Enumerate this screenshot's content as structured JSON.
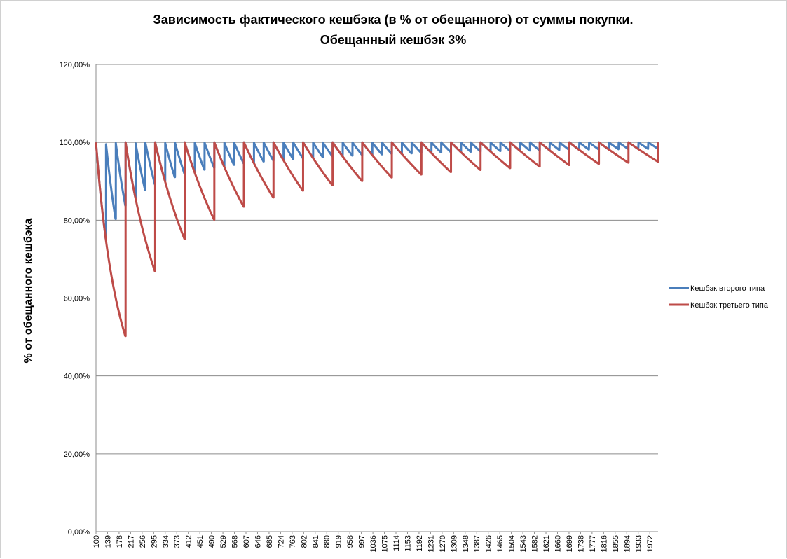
{
  "chart_data": {
    "type": "line",
    "title_line1": "Зависимость фактического кешбэка (в % от обещанного) от суммы покупки.",
    "title_line2": "Обещанный кешбэк 3%",
    "xlabel": "",
    "ylabel": "% от обещанного кешбэка",
    "ylim": [
      0,
      1.2
    ],
    "y_ticks": [
      "0,00%",
      "20,00%",
      "40,00%",
      "60,00%",
      "80,00%",
      "100,00%",
      "120,00%"
    ],
    "y_tick_values": [
      0,
      0.2,
      0.4,
      0.6,
      0.8,
      1.0,
      1.2
    ],
    "xlim": [
      100,
      2000
    ],
    "x_tick_labels": [
      "100",
      "139",
      "178",
      "217",
      "256",
      "295",
      "334",
      "373",
      "412",
      "451",
      "490",
      "529",
      "568",
      "607",
      "646",
      "685",
      "724",
      "763",
      "802",
      "841",
      "880",
      "919",
      "958",
      "997",
      "1036",
      "1075",
      "1114",
      "1153",
      "1192",
      "1231",
      "1270",
      "1309",
      "1348",
      "1387",
      "1426",
      "1465",
      "1504",
      "1543",
      "1582",
      "1621",
      "1660",
      "1699",
      "1738",
      "1777",
      "1816",
      "1855",
      "1894",
      "1933",
      "1972"
    ],
    "grid": "horizontal",
    "legend_position": "right",
    "series": [
      {
        "name": "Кешбэк второго типа",
        "color": "#4a7ebb",
        "step": 33.3333
      },
      {
        "name": "Кешбэк третьего типа",
        "color": "#be4b48",
        "step": 100
      }
    ]
  }
}
